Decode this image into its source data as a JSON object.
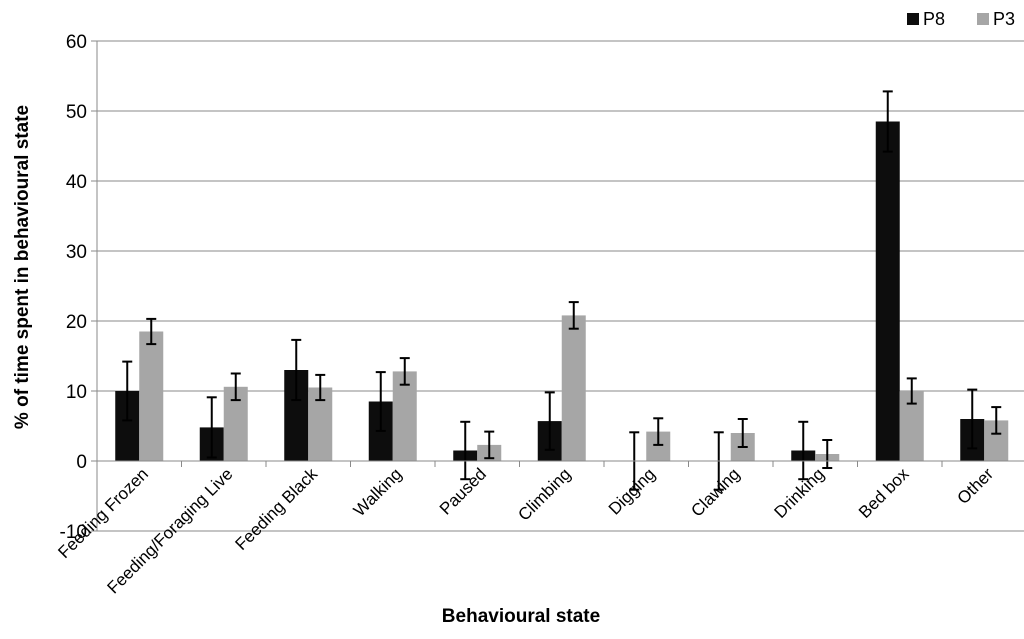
{
  "chart_data": {
    "type": "bar",
    "title": "",
    "xlabel": "Behavioural state",
    "ylabel": "% of time spent in behavioural state",
    "ylim": [
      -10,
      60
    ],
    "yticks": [
      -10,
      0,
      10,
      20,
      30,
      40,
      50,
      60
    ],
    "grid": true,
    "legend_position": "top-right",
    "categories": [
      "Feeding Frozen",
      "Feeding/Foraging Live",
      "Feeding Black",
      "Walking",
      "Paused",
      "Climbing",
      "Digging",
      "Clawing",
      "Drinking",
      "Bed box",
      "Other"
    ],
    "series": [
      {
        "name": "P8",
        "color": "#0d0d0d",
        "values": [
          10.0,
          4.8,
          13.0,
          8.5,
          1.5,
          5.7,
          0.0,
          0.0,
          1.5,
          48.5,
          6.0
        ],
        "errors": [
          4.2,
          4.3,
          4.3,
          4.2,
          4.1,
          4.1,
          4.1,
          4.1,
          4.1,
          4.3,
          4.2
        ]
      },
      {
        "name": "P3",
        "color": "#a6a6a6",
        "values": [
          18.5,
          10.6,
          10.5,
          12.8,
          2.3,
          20.8,
          4.2,
          4.0,
          1.0,
          10.0,
          5.8
        ],
        "errors": [
          1.8,
          1.9,
          1.8,
          1.9,
          1.9,
          1.9,
          1.9,
          2.0,
          2.0,
          1.8,
          1.9
        ]
      }
    ]
  }
}
